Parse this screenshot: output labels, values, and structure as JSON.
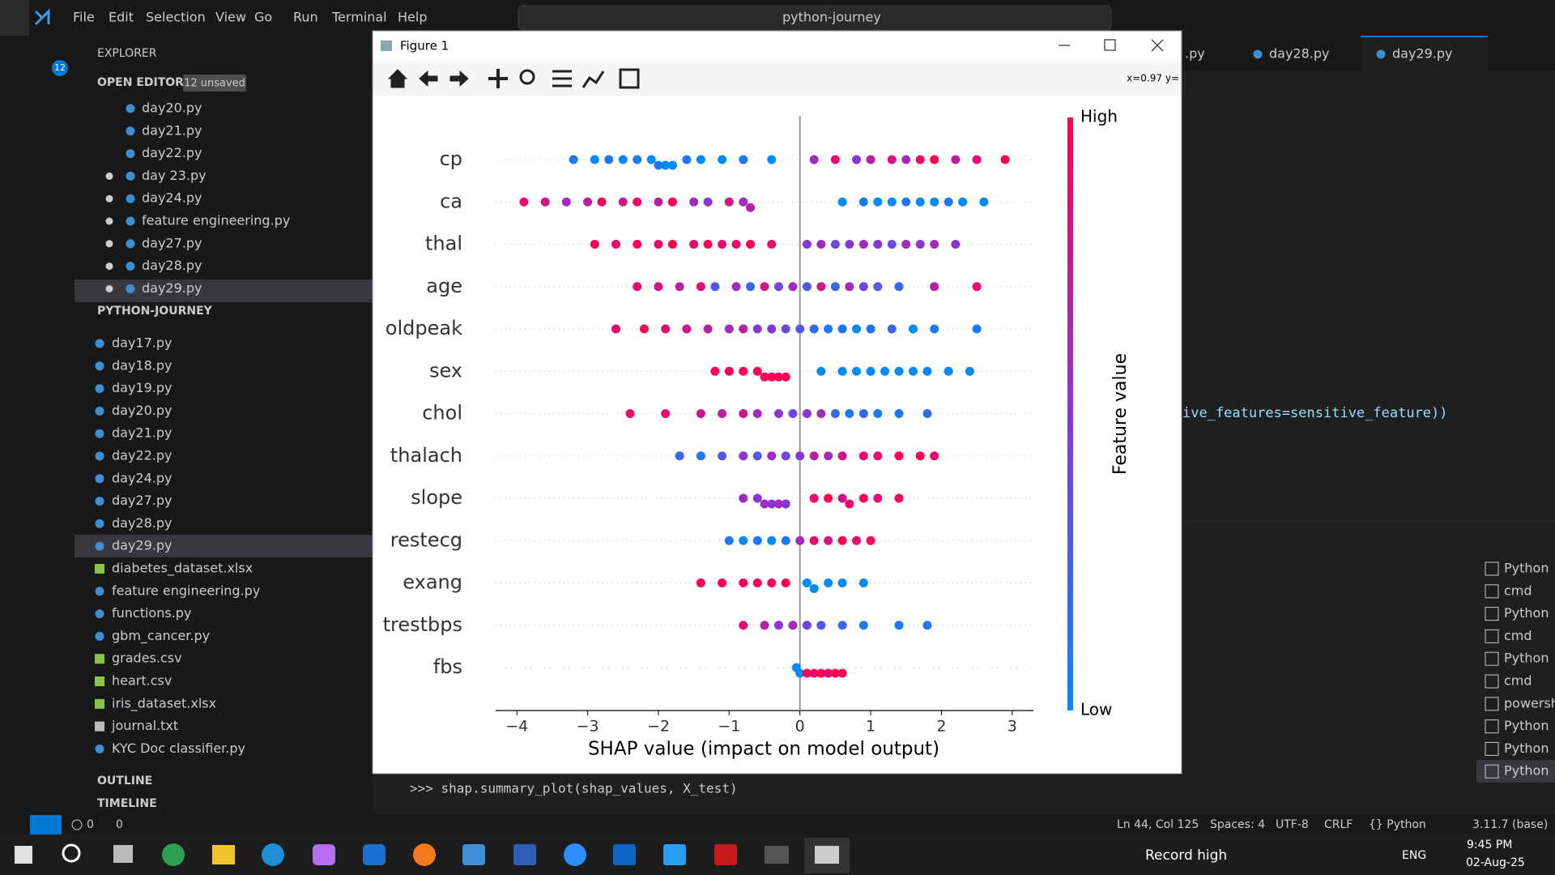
{
  "chart_data": {
    "type": "beeswarm",
    "categories": [
      "cp",
      "ca",
      "thal",
      "age",
      "oldpeak",
      "sex",
      "chol",
      "thalach",
      "slope",
      "restecg",
      "exang",
      "trestbps",
      "fbs"
    ],
    "values": [
      [
        -3.2,
        -2.9,
        -2.7,
        -2.5,
        -2.3,
        -2.1,
        -2.0,
        -1.9,
        -1.8,
        -1.6,
        -1.4,
        -1.1,
        -0.8,
        -0.4,
        0.2,
        0.5,
        0.8,
        1.0,
        1.3,
        1.5,
        1.7,
        1.9,
        2.2,
        2.5,
        2.9
      ],
      [
        -3.9,
        -3.6,
        -3.3,
        -3.0,
        -2.8,
        -2.5,
        -2.3,
        -2.0,
        -1.8,
        -1.5,
        -1.3,
        -1.0,
        -0.8,
        -0.7,
        0.6,
        0.9,
        1.1,
        1.3,
        1.5,
        1.7,
        1.9,
        2.1,
        2.3,
        2.6
      ],
      [
        -2.9,
        -2.6,
        -2.3,
        -2.0,
        -1.8,
        -1.5,
        -1.3,
        -1.1,
        -0.9,
        -0.7,
        -0.4,
        0.1,
        0.3,
        0.5,
        0.7,
        0.9,
        1.1,
        1.3,
        1.5,
        1.7,
        1.9,
        2.2
      ],
      [
        -2.3,
        -2.0,
        -1.7,
        -1.4,
        -1.2,
        -0.9,
        -0.7,
        -0.5,
        -0.3,
        -0.1,
        0.1,
        0.3,
        0.5,
        0.7,
        0.9,
        1.1,
        1.4,
        1.9,
        2.5
      ],
      [
        -2.6,
        -2.2,
        -1.9,
        -1.6,
        -1.3,
        -1.0,
        -0.8,
        -0.6,
        -0.4,
        -0.2,
        0.0,
        0.2,
        0.4,
        0.6,
        0.8,
        1.0,
        1.3,
        1.6,
        1.9,
        2.5
      ],
      [
        -1.2,
        -1.0,
        -0.8,
        -0.6,
        -0.5,
        -0.4,
        -0.3,
        -0.2,
        0.3,
        0.6,
        0.8,
        1.0,
        1.2,
        1.4,
        1.6,
        1.8,
        2.1,
        2.4
      ],
      [
        -2.4,
        -1.9,
        -1.4,
        -1.1,
        -0.8,
        -0.6,
        -0.3,
        -0.1,
        0.1,
        0.3,
        0.5,
        0.7,
        0.9,
        1.1,
        1.4,
        1.8
      ],
      [
        -1.7,
        -1.4,
        -1.1,
        -0.8,
        -0.6,
        -0.4,
        -0.2,
        0.0,
        0.2,
        0.4,
        0.6,
        0.9,
        1.1,
        1.4,
        1.7,
        1.9
      ],
      [
        -0.8,
        -0.6,
        -0.5,
        -0.4,
        -0.3,
        -0.2,
        0.2,
        0.4,
        0.6,
        0.7,
        0.9,
        1.1,
        1.4
      ],
      [
        -1.0,
        -0.8,
        -0.6,
        -0.4,
        -0.2,
        0.0,
        0.2,
        0.4,
        0.6,
        0.8,
        1.0
      ],
      [
        -1.4,
        -1.1,
        -0.8,
        -0.6,
        -0.4,
        -0.2,
        0.1,
        0.2,
        0.4,
        0.6,
        0.9
      ],
      [
        -0.8,
        -0.5,
        -0.3,
        -0.1,
        0.1,
        0.3,
        0.6,
        0.9,
        1.4,
        1.8
      ],
      [
        -0.05,
        0.0,
        0.1,
        0.2,
        0.3,
        0.4,
        0.5,
        0.6
      ]
    ],
    "color_values": [
      [
        0.1,
        0,
        0.1,
        0,
        0.1,
        0,
        0.1,
        0,
        0,
        0.1,
        0,
        0,
        0.1,
        0,
        0.6,
        0.9,
        0.5,
        0.7,
        0.8,
        0.6,
        0.9,
        1,
        0.7,
        0.9,
        1
      ],
      [
        0.9,
        0.8,
        0.6,
        0.7,
        1,
        0.8,
        0.9,
        0.7,
        1,
        0.6,
        0.5,
        0.8,
        0.6,
        0.7,
        0,
        0.1,
        0,
        0,
        0.1,
        0,
        0,
        0.1,
        0,
        0
      ],
      [
        1,
        0.9,
        1,
        0.9,
        1,
        0.9,
        1,
        0.9,
        0.9,
        1,
        0.9,
        0.5,
        0.6,
        0.4,
        0.5,
        0.6,
        0.5,
        0.4,
        0.6,
        0.5,
        0.6,
        0.5
      ],
      [
        0.9,
        0.8,
        0.7,
        0.9,
        0.3,
        0.6,
        0.2,
        0.8,
        0.4,
        0.6,
        0.3,
        0.8,
        0.2,
        0.6,
        0.4,
        0.3,
        0.2,
        0.7,
        0.9
      ],
      [
        0.9,
        1,
        0.9,
        0.8,
        0.7,
        0.6,
        0.7,
        0.5,
        0.5,
        0.4,
        0.3,
        0.2,
        0.1,
        0.1,
        0,
        0.1,
        0.2,
        0,
        0.1,
        0.1
      ],
      [
        1,
        1,
        1,
        1,
        1,
        1,
        1,
        1,
        0,
        0,
        0,
        0,
        0,
        0,
        0,
        0,
        0,
        0
      ],
      [
        0.9,
        0.9,
        0.8,
        0.7,
        0.8,
        0.6,
        0.5,
        0.4,
        0.5,
        0.6,
        0.2,
        0.1,
        0.2,
        0.1,
        0.1,
        0.2
      ],
      [
        0.2,
        0.1,
        0.3,
        0.5,
        0.3,
        0.6,
        0.4,
        0.5,
        0.7,
        0.6,
        0.8,
        0.9,
        0.9,
        1,
        1,
        0.9
      ],
      [
        0.6,
        0.5,
        0.6,
        0.5,
        0.6,
        0.5,
        0.9,
        1,
        0.8,
        0.9,
        1,
        0.9,
        1
      ],
      [
        0.1,
        0,
        0.1,
        0,
        0.1,
        0.6,
        0.9,
        0.8,
        1,
        0.9,
        1
      ],
      [
        1,
        1,
        1,
        1,
        1,
        1,
        0,
        0,
        0,
        0,
        0
      ],
      [
        0.9,
        0.7,
        0.5,
        0.6,
        0.4,
        0.3,
        0.2,
        0.1,
        0.1,
        0.1
      ],
      [
        0,
        0,
        1,
        0.9,
        1,
        0.9,
        1,
        1
      ]
    ],
    "cmap": [
      "#008afb",
      "#8a36d6",
      "#ff0052"
    ],
    "xlabel": "SHAP value (impact on model output)",
    "xlim": [
      -4.3,
      3.3
    ],
    "xticks": [
      {
        "value": -4,
        "label": "−4"
      },
      {
        "value": -3,
        "label": "−3"
      },
      {
        "value": -2,
        "label": "−2"
      },
      {
        "value": -1,
        "label": "−1"
      },
      0,
      1,
      2,
      3
    ],
    "colorbar_label": "Feature value",
    "colorbar_high": "High",
    "colorbar_low": "Low"
  },
  "ui": {
    "menu": [
      "File",
      "Edit",
      "Selection",
      "View",
      "Go",
      "Run",
      "Terminal",
      "Help"
    ],
    "search": "python-journey",
    "explorer": {
      "title": "EXPLORER",
      "badge": "12",
      "open_editors": "OPEN EDITORS",
      "unsaved": "12 unsaved",
      "open_files": [
        "day20.py",
        "day21.py",
        "day22.py",
        "day 23.py",
        "day24.py",
        "feature engineering.py",
        "day27.py",
        "day28.py",
        "day29.py"
      ],
      "project": "PYTHON-JOURNEY",
      "files": [
        "day17.py",
        "day18.py",
        "day19.py",
        "day20.py",
        "day21.py",
        "day22.py",
        "day24.py",
        "day27.py",
        "day28.py",
        "day29.py",
        "diabetes_dataset.xlsx",
        "feature engineering.py",
        "functions.py",
        "gbm_cancer.py",
        "grades.csv",
        "heart.csv",
        "iris_dataset.xlsx",
        "journal.txt",
        "KYC Doc classifier.py"
      ],
      "outline": "OUTLINE",
      "timeline": "TIMELINE"
    },
    "tabs": [
      ".py",
      "day28.py",
      "day29.py"
    ],
    "code": "ive_features=sensitive_feature))",
    "terminal": {
      "command": ">>> shap.summary_plot(shap_values, X_test)",
      "sessions": [
        "Python",
        "cmd",
        "Python",
        "cmd",
        "Python",
        "cmd",
        "powersh",
        "Python",
        "Python",
        "Python"
      ]
    },
    "status": {
      "errors": "0",
      "warnings": "0",
      "items": [
        "Ln 44, Col 125",
        "Spaces: 4",
        "UTF-8",
        "CRLF",
        "{} Python",
        "3.11.7 (base)"
      ]
    },
    "taskbar": {
      "weather": "Record high",
      "lang": "ENG",
      "time": "9:45 PM",
      "date": "02-Aug-25"
    },
    "figure": {
      "title": "Figure 1",
      "coords": "x=0.97 y="
    }
  }
}
